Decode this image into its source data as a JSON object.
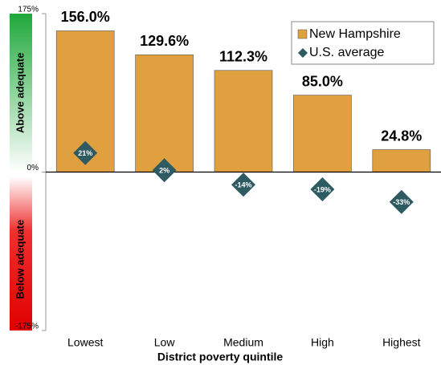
{
  "chart_data": {
    "type": "bar",
    "x_label": "District poverty quintile",
    "categories": [
      "Lowest",
      "Low",
      "Medium",
      "High",
      "Highest"
    ],
    "series": [
      {
        "name": "New Hampshire",
        "color": "#e0a040",
        "values": [
          156.0,
          129.6,
          112.3,
          85.0,
          24.8
        ],
        "value_labels": [
          "156.0%",
          "129.6%",
          "112.3%",
          "85.0%",
          "24.8%"
        ]
      },
      {
        "name": "U.S. average",
        "color": "#2e5a62",
        "values": [
          21,
          2,
          -14,
          -19,
          -33
        ],
        "value_labels": [
          "21%",
          "2%",
          "-14%",
          "-19%",
          "-33%"
        ]
      }
    ],
    "ylim": [
      -175,
      175
    ],
    "yticks": [
      {
        "value": -175,
        "label": "-175%"
      },
      {
        "value": 0,
        "label": "0%"
      },
      {
        "value": 175,
        "label": "175%"
      }
    ],
    "annotations": [
      "Above adequate",
      "Below adequate"
    ],
    "legend": "upper right"
  }
}
